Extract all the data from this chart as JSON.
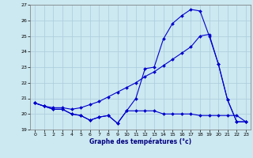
{
  "title": "Graphe des températures (°c)",
  "background_color": "#cce8f0",
  "grid_color": "#aaccdd",
  "line_color": "#0000cc",
  "xlim": [
    -0.5,
    23.5
  ],
  "ylim": [
    19,
    27
  ],
  "yticks": [
    19,
    20,
    21,
    22,
    23,
    24,
    25,
    26,
    27
  ],
  "xticks": [
    0,
    1,
    2,
    3,
    4,
    5,
    6,
    7,
    8,
    9,
    10,
    11,
    12,
    13,
    14,
    15,
    16,
    17,
    18,
    19,
    20,
    21,
    22,
    23
  ],
  "flat_y": [
    20.7,
    20.5,
    20.3,
    20.3,
    20.0,
    19.9,
    19.6,
    19.8,
    19.9,
    19.4,
    20.2,
    20.2,
    20.2,
    20.2,
    20.0,
    20.0,
    20.0,
    20.0,
    19.9,
    19.9,
    19.9,
    19.9,
    19.9,
    19.5
  ],
  "diag_y": [
    20.7,
    20.5,
    20.4,
    20.4,
    20.3,
    20.4,
    20.6,
    20.8,
    21.1,
    21.4,
    21.7,
    22.0,
    22.4,
    22.7,
    23.1,
    23.5,
    23.9,
    24.3,
    25.0,
    25.1,
    23.2,
    20.9,
    19.5,
    19.5
  ],
  "peak_y": [
    20.7,
    20.5,
    20.3,
    20.3,
    20.0,
    19.9,
    19.6,
    19.8,
    19.9,
    19.4,
    20.2,
    21.0,
    22.9,
    23.0,
    24.8,
    25.8,
    26.3,
    26.7,
    26.6,
    25.0,
    23.2,
    20.9,
    19.5,
    19.5
  ]
}
